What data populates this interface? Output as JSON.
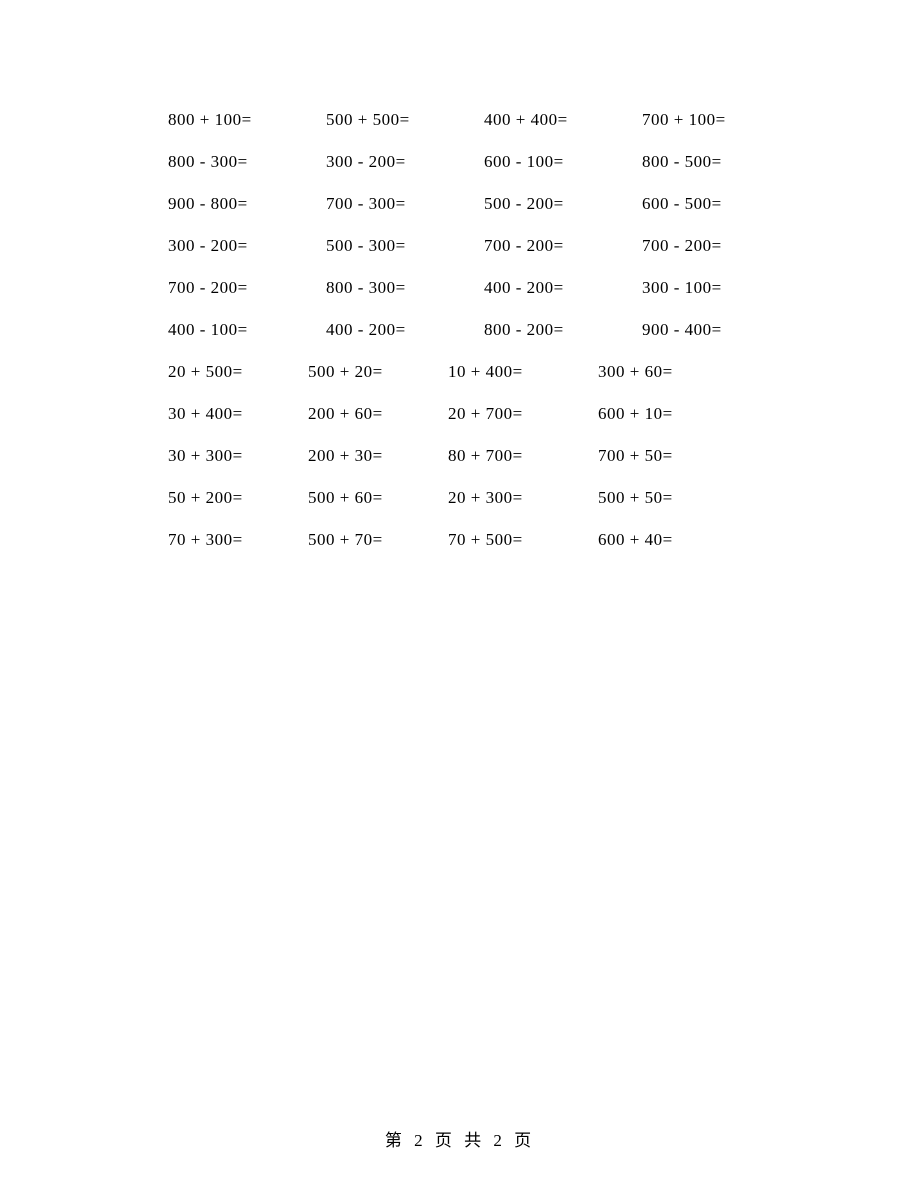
{
  "worksheet": {
    "background_color": "#ffffff",
    "text_color": "#000000",
    "font_family": "SimSun",
    "font_size": 17,
    "row_spacing": 22,
    "rows": [
      {
        "cells": [
          "800 + 100=",
          "500 + 500=",
          "400 + 400=",
          "700 + 100="
        ],
        "offsets": [
          0,
          158,
          316,
          474
        ]
      },
      {
        "cells": [
          "800 - 300=",
          "300 - 200=",
          "600 - 100=",
          "800 - 500="
        ],
        "offsets": [
          0,
          158,
          316,
          474
        ]
      },
      {
        "cells": [
          "900 - 800=",
          "700 - 300=",
          "500 - 200=",
          "600 - 500="
        ],
        "offsets": [
          0,
          158,
          316,
          474
        ]
      },
      {
        "cells": [
          "300 - 200=",
          "500 - 300=",
          "700 - 200=",
          "700 - 200="
        ],
        "offsets": [
          0,
          158,
          316,
          474
        ]
      },
      {
        "cells": [
          "700 - 200=",
          "800 - 300=",
          "400 - 200=",
          "300 - 100="
        ],
        "offsets": [
          0,
          158,
          316,
          474
        ]
      },
      {
        "cells": [
          "400 - 100=",
          "400 - 200=",
          "800 - 200=",
          "900 - 400="
        ],
        "offsets": [
          0,
          158,
          316,
          474
        ]
      },
      {
        "cells": [
          "20 + 500=",
          "500 + 20=",
          "10 + 400=",
          "300 + 60="
        ],
        "offsets": [
          0,
          140,
          280,
          430
        ]
      },
      {
        "cells": [
          "30 + 400=",
          "200 + 60=",
          "20 + 700=",
          "600 + 10="
        ],
        "offsets": [
          0,
          140,
          280,
          430
        ]
      },
      {
        "cells": [
          "30 + 300=",
          "200 + 30=",
          "80 + 700=",
          "700 + 50="
        ],
        "offsets": [
          0,
          140,
          280,
          430
        ]
      },
      {
        "cells": [
          "50 + 200=",
          "500 + 60=",
          "20 + 300=",
          "500 + 50="
        ],
        "offsets": [
          0,
          140,
          280,
          430
        ]
      },
      {
        "cells": [
          "70 + 300=",
          "500 + 70=",
          "70 + 500=",
          "600 + 40="
        ],
        "offsets": [
          0,
          140,
          280,
          430
        ]
      }
    ]
  },
  "footer": {
    "text": "第 2 页 共 2 页"
  }
}
